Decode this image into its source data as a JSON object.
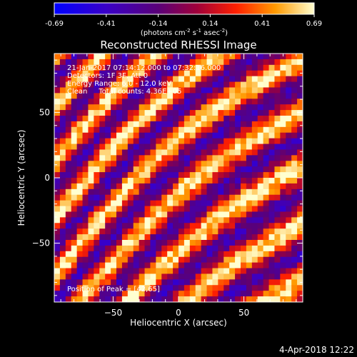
{
  "chart_data": {
    "type": "heatmap",
    "title": "Reconstructed RHESSI Image",
    "xlabel": "Heliocentric X (arcsec)",
    "ylabel": "Heliocentric Y (arcsec)",
    "xlim": [
      -95,
      95
    ],
    "ylim": [
      -95,
      95
    ],
    "x_ticks": [
      -50,
      0,
      50
    ],
    "y_ticks": [
      -50,
      0,
      50
    ],
    "colorbar": {
      "range": [
        -0.69,
        0.69
      ],
      "tick_labels": [
        "-0.69",
        "-0.41",
        "-0.14",
        "0.14",
        "0.41",
        "0.69"
      ],
      "unit_label": "(photons cm",
      "unit_exp1": "-2",
      "unit_mid": " s",
      "unit_exp2": "-1",
      "unit_mid2": " asec",
      "unit_exp3": "-2",
      "unit_end": ")"
    },
    "annotations": [
      "21-Jan-2017 07:14:12.000 to 07:32:16.000",
      "Detectors: 1F 3F, Att 0",
      "Energy Range: 6.0 - 12.0 keV",
      "Clean     Total counts: 4.36E+05"
    ],
    "peak_label": "Position of Peak = [42,65]",
    "grid": false,
    "pattern": "diagonal fringe stripes, upper-left to lower-right"
  },
  "footer": {
    "timestamp": "4-Apr-2018 12:22"
  }
}
